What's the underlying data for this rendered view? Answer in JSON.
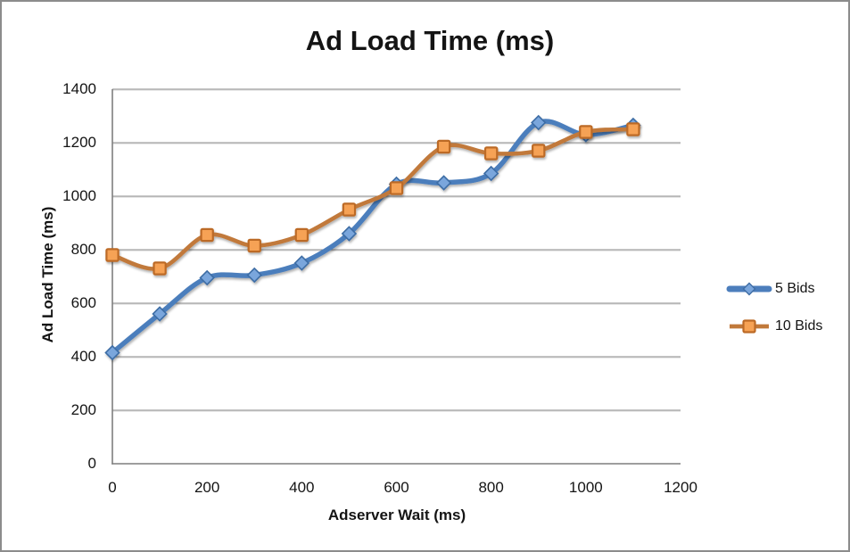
{
  "window": {
    "background": "#FFFFFF",
    "border_color": "#8C8C8C"
  },
  "chart_data": {
    "type": "line",
    "title": "Ad Load Time (ms)",
    "xlabel": "Adserver Wait (ms)",
    "ylabel": "Ad Load Time (ms)",
    "x": [
      0,
      100,
      200,
      300,
      400,
      500,
      600,
      700,
      800,
      900,
      1000,
      1100
    ],
    "series": [
      {
        "name": "5 Bids",
        "marker": "diamond",
        "line_color": "#4C7EBC",
        "marker_fill": "#7AA6DC",
        "marker_stroke": "#3E6DA5",
        "line_width": 5.5,
        "values": [
          415,
          560,
          695,
          705,
          750,
          860,
          1045,
          1050,
          1085,
          1275,
          1230,
          1265
        ]
      },
      {
        "name": "10 Bids",
        "marker": "square",
        "line_color": "#C1793A",
        "marker_fill": "#F6A254",
        "marker_stroke": "#BC6A26",
        "line_width": 4.6,
        "values": [
          780,
          730,
          855,
          815,
          855,
          950,
          1030,
          1185,
          1160,
          1170,
          1240,
          1250
        ]
      }
    ],
    "xlim": [
      0,
      1200
    ],
    "ylim": [
      0,
      1400
    ],
    "x_ticks": [
      0,
      200,
      400,
      600,
      800,
      1000,
      1200
    ],
    "y_ticks": [
      0,
      200,
      400,
      600,
      800,
      1000,
      1200,
      1400
    ],
    "grid": true,
    "smooth": true,
    "legend_position": "right",
    "gridline_color": "#8E8E8E",
    "axis_color": "#7F7F7F"
  }
}
